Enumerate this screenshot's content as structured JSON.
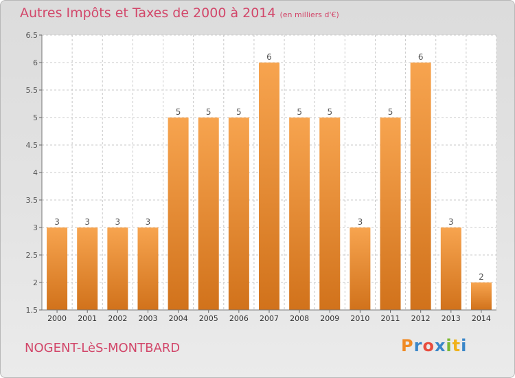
{
  "header": {
    "title": "Autres Impôts et Taxes de 2000 à 2014",
    "unit": "(en milliers d'€)"
  },
  "footer": {
    "city": "NOGENT-LèS-MONTBARD",
    "logo_letters": [
      "P",
      "r",
      "o",
      "x",
      "i",
      "t",
      "i"
    ],
    "logo_colors": [
      "#f08a24",
      "#3a86c8",
      "#e84c3d",
      "#3a86c8",
      "#7cb833",
      "#f0b21b",
      "#3a86c8"
    ]
  },
  "colors": {
    "bar_light": "#f7a44f",
    "bar_dark": "#d1721b",
    "grid": "#c8c8c8",
    "axis_text": "#555555",
    "accent": "#d2476a"
  },
  "chart_data": {
    "type": "bar",
    "categories": [
      "2000",
      "2001",
      "2002",
      "2003",
      "2004",
      "2005",
      "2006",
      "2007",
      "2008",
      "2009",
      "2010",
      "2011",
      "2012",
      "2013",
      "2014"
    ],
    "values": [
      3,
      3,
      3,
      3,
      5,
      5,
      5,
      6,
      5,
      5,
      3,
      5,
      6,
      3,
      2
    ],
    "data_labels": [
      "3",
      "3",
      "3",
      "3",
      "5",
      "5",
      "5",
      "6",
      "5",
      "5",
      "3",
      "5",
      "6",
      "3",
      "2"
    ],
    "title": "Autres Impôts et Taxes de 2000 à 2014",
    "subtitle": "(en milliers d'€)",
    "xlabel": "",
    "ylabel": "",
    "ylim": [
      1.5,
      6.5
    ],
    "yticks": [
      "1.5",
      "2",
      "2.5",
      "3",
      "3.5",
      "4",
      "4.5",
      "5",
      "5.5",
      "6",
      "6.5"
    ],
    "grid": true
  }
}
